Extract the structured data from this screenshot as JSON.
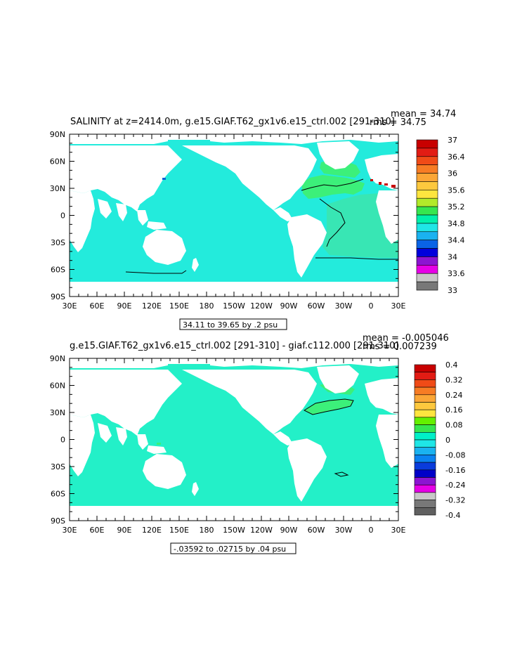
{
  "panels": [
    {
      "title": "SALINITY at z=2414.0m, g.e15.GIAF.T62_gx1v6.e15_ctrl.002 [291-310]",
      "stats": {
        "mean": "mean = 34.74",
        "rms": "rms = 34.75"
      },
      "contour_info": "34.11 to 39.65 by .2 psu",
      "colorbar_labels": [
        "37",
        "36.4",
        "36",
        "35.6",
        "35.2",
        "34.8",
        "34.4",
        "34",
        "33.6",
        "33"
      ],
      "colorbar_colors": [
        "#c80000",
        "#e21c14",
        "#f04b17",
        "#f77c24",
        "#fba636",
        "#fdc83e",
        "#fee53f",
        "#b2ea2a",
        "#36e64f",
        "#00f0aa",
        "#1fe6e6",
        "#1ab2f0",
        "#0a64e6",
        "#0000dc",
        "#8c14d2",
        "#e600e6",
        "#c8c8c8",
        "#787878"
      ],
      "ocean_color": "#23ebdc",
      "regions": {
        "north_atlantic": "#3cf07a",
        "south_atlantic": "#38e6b4",
        "mediterranean": "#c80000",
        "black_sea": "#1264d2"
      }
    },
    {
      "title": "g.e15.GIAF.T62_gx1v6.e15_ctrl.002 [291-310] - giaf.c112.000 [291-310]",
      "stats": {
        "mean": "mean = -0.005046",
        "rms": "rms = 0.007239"
      },
      "contour_info": "-.03592 to .02715 by .04 psu",
      "colorbar_labels": [
        "0.4",
        "0.32",
        "0.24",
        "0.16",
        "0.08",
        "0",
        "-0.08",
        "-0.16",
        "-0.24",
        "-0.32",
        "-0.4"
      ],
      "colorbar_colors": [
        "#c80000",
        "#e21c14",
        "#f04b17",
        "#f77c24",
        "#fba636",
        "#fdc83e",
        "#fee53f",
        "#64f000",
        "#36e64f",
        "#00f0c8",
        "#1fe6e6",
        "#1ab2f0",
        "#0a82f0",
        "#0a3cdc",
        "#0000c8",
        "#8c14d2",
        "#e600e6",
        "#c8c8c8",
        "#787878",
        "#606060"
      ],
      "ocean_color": "#23f0c8",
      "regions": {
        "north_atlantic": "#3cf07a"
      }
    }
  ],
  "axes": {
    "x_ticks": [
      "30E",
      "60E",
      "90E",
      "120E",
      "150E",
      "180",
      "150W",
      "120W",
      "90W",
      "60W",
      "30W",
      "0",
      "30E"
    ],
    "y_ticks": [
      "90N",
      "60N",
      "30N",
      "0",
      "30S",
      "60S",
      "90S"
    ]
  }
}
